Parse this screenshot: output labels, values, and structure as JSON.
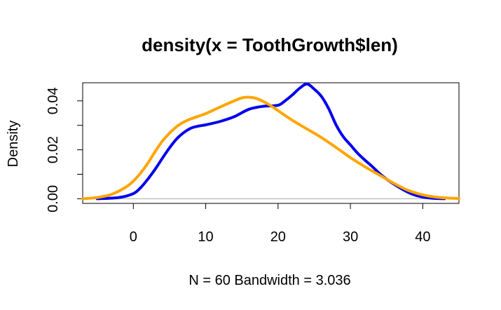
{
  "chart_data": {
    "type": "line",
    "title": "density(x = ToothGrowth$len)",
    "xlabel": "N = 60   Bandwidth = 3.036",
    "ylabel": "Density",
    "xlim": [
      -7,
      45
    ],
    "ylim": [
      -0.0019,
      0.0474
    ],
    "x_ticks": [
      0,
      10,
      20,
      30,
      40
    ],
    "x_tick_labels": [
      "0",
      "10",
      "20",
      "30",
      "40"
    ],
    "y_ticks": [
      0.0,
      0.01,
      0.02,
      0.03,
      0.04
    ],
    "y_tick_labels": [
      "0.00",
      "0.02",
      "0.04"
    ],
    "y_label_ticks": [
      0.0,
      0.02,
      0.04
    ],
    "grid": false,
    "baseline": 0,
    "series": [
      {
        "color": "#0000ee",
        "x": [
          -5,
          -2,
          0,
          1,
          2,
          3,
          4,
          5,
          6,
          7,
          8,
          9,
          10,
          12,
          14,
          16,
          18,
          20,
          21,
          22,
          23,
          24,
          25,
          26,
          27,
          28,
          29,
          30,
          31,
          32,
          33,
          34,
          35,
          36,
          37,
          38,
          39,
          40,
          41,
          42,
          43
        ],
        "y": [
          0.0,
          0.0005,
          0.0021,
          0.0045,
          0.008,
          0.012,
          0.0165,
          0.0208,
          0.0245,
          0.0271,
          0.0289,
          0.0297,
          0.0302,
          0.0316,
          0.0336,
          0.0366,
          0.0378,
          0.0382,
          0.0401,
          0.0425,
          0.0452,
          0.0469,
          0.0448,
          0.0418,
          0.0368,
          0.0303,
          0.0254,
          0.022,
          0.0186,
          0.0158,
          0.0132,
          0.0104,
          0.008,
          0.006,
          0.0042,
          0.0026,
          0.0014,
          0.0007,
          0.0003,
          0.0001,
          0.0
        ]
      },
      {
        "color": "#ffa500",
        "x": [
          -7,
          -5,
          -3,
          -1,
          0,
          1,
          2,
          3,
          4,
          5,
          6,
          7,
          8,
          10,
          12,
          14,
          15,
          16,
          17,
          18,
          19,
          20,
          22,
          24,
          26,
          28,
          30,
          32,
          34,
          36,
          38,
          40,
          42,
          44,
          45
        ],
        "y": [
          0.0,
          0.0005,
          0.0018,
          0.0048,
          0.0072,
          0.0105,
          0.0145,
          0.0192,
          0.0235,
          0.0268,
          0.0295,
          0.0314,
          0.0327,
          0.0348,
          0.0375,
          0.0401,
          0.0412,
          0.0415,
          0.041,
          0.0397,
          0.038,
          0.036,
          0.032,
          0.0285,
          0.025,
          0.021,
          0.0168,
          0.0131,
          0.0097,
          0.0063,
          0.0034,
          0.0016,
          0.0006,
          0.0002,
          0.0001
        ]
      }
    ]
  }
}
